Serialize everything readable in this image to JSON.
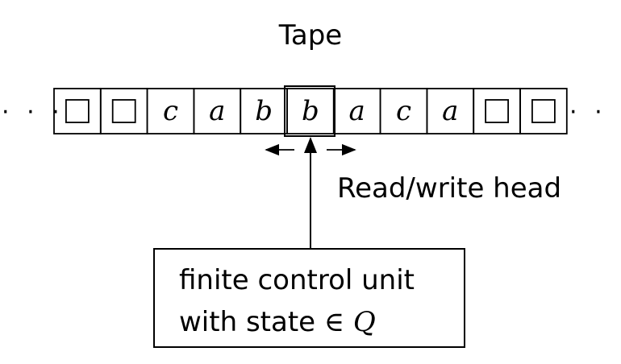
{
  "title": "Tape",
  "ellipsis": "· · ·",
  "tape": {
    "cells": [
      "□",
      "□",
      "c",
      "a",
      "b",
      "b",
      "a",
      "c",
      "a",
      "□",
      "□"
    ],
    "head_index": 5
  },
  "head_label": "Read/write head",
  "control_unit": {
    "line1": "finite control unit",
    "line2_text": "with state",
    "line2_symbol": "∈",
    "line2_set": "Q"
  }
}
